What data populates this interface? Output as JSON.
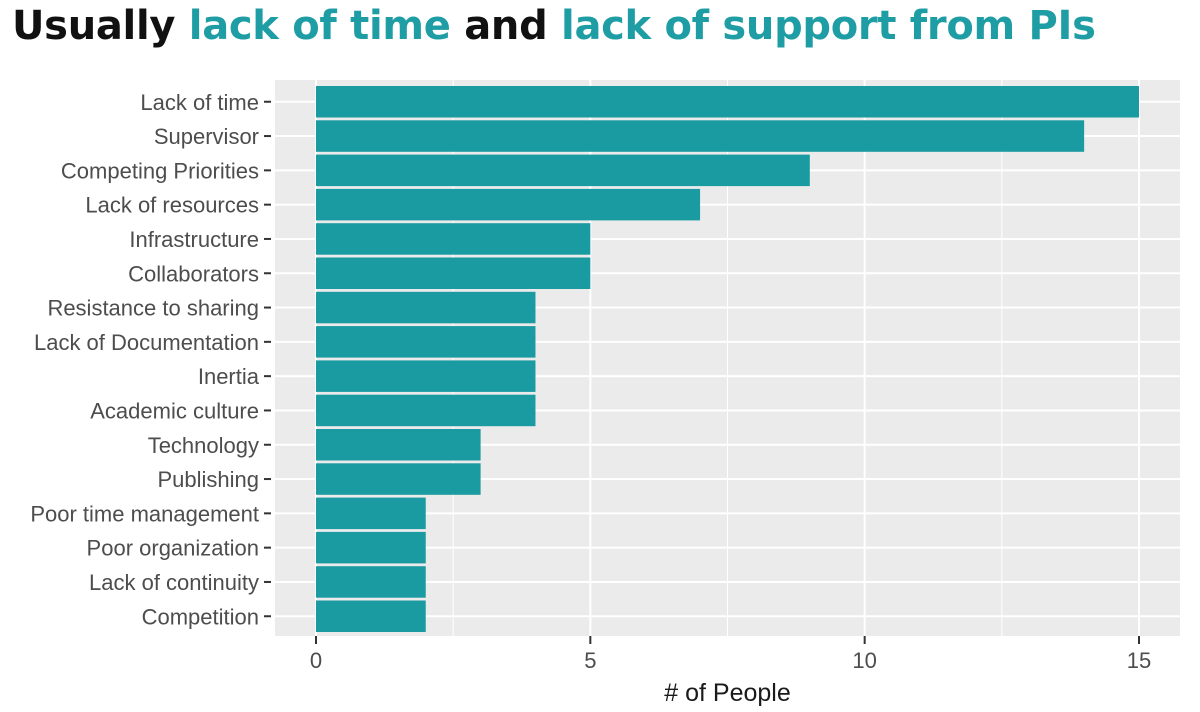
{
  "headline": {
    "part1": "Usually ",
    "part2": "lack of time",
    "part3": " and ",
    "part4": "lack of support from PIs",
    "text_color": "#111111",
    "accent_color": "#1e9ea4"
  },
  "chart_data": {
    "type": "bar",
    "orientation": "horizontal",
    "categories": [
      "Lack of time",
      "Supervisor",
      "Competing Priorities",
      "Lack of resources",
      "Infrastructure",
      "Collaborators",
      "Resistance to sharing",
      "Lack of Documentation",
      "Inertia",
      "Academic culture",
      "Technology",
      "Publishing",
      "Poor time management",
      "Poor organization",
      "Lack of continuity",
      "Competition"
    ],
    "values": [
      15,
      14,
      9,
      7,
      5,
      5,
      4,
      4,
      4,
      4,
      3,
      3,
      2,
      2,
      2,
      2
    ],
    "xlabel": "# of People",
    "ylabel": "",
    "xlim": [
      0,
      15
    ],
    "xticks": [
      0,
      5,
      10,
      15
    ],
    "grid": true,
    "bar_color": "#1a9aa1",
    "panel_color": "#ebebeb",
    "grid_color": "#ffffff"
  }
}
